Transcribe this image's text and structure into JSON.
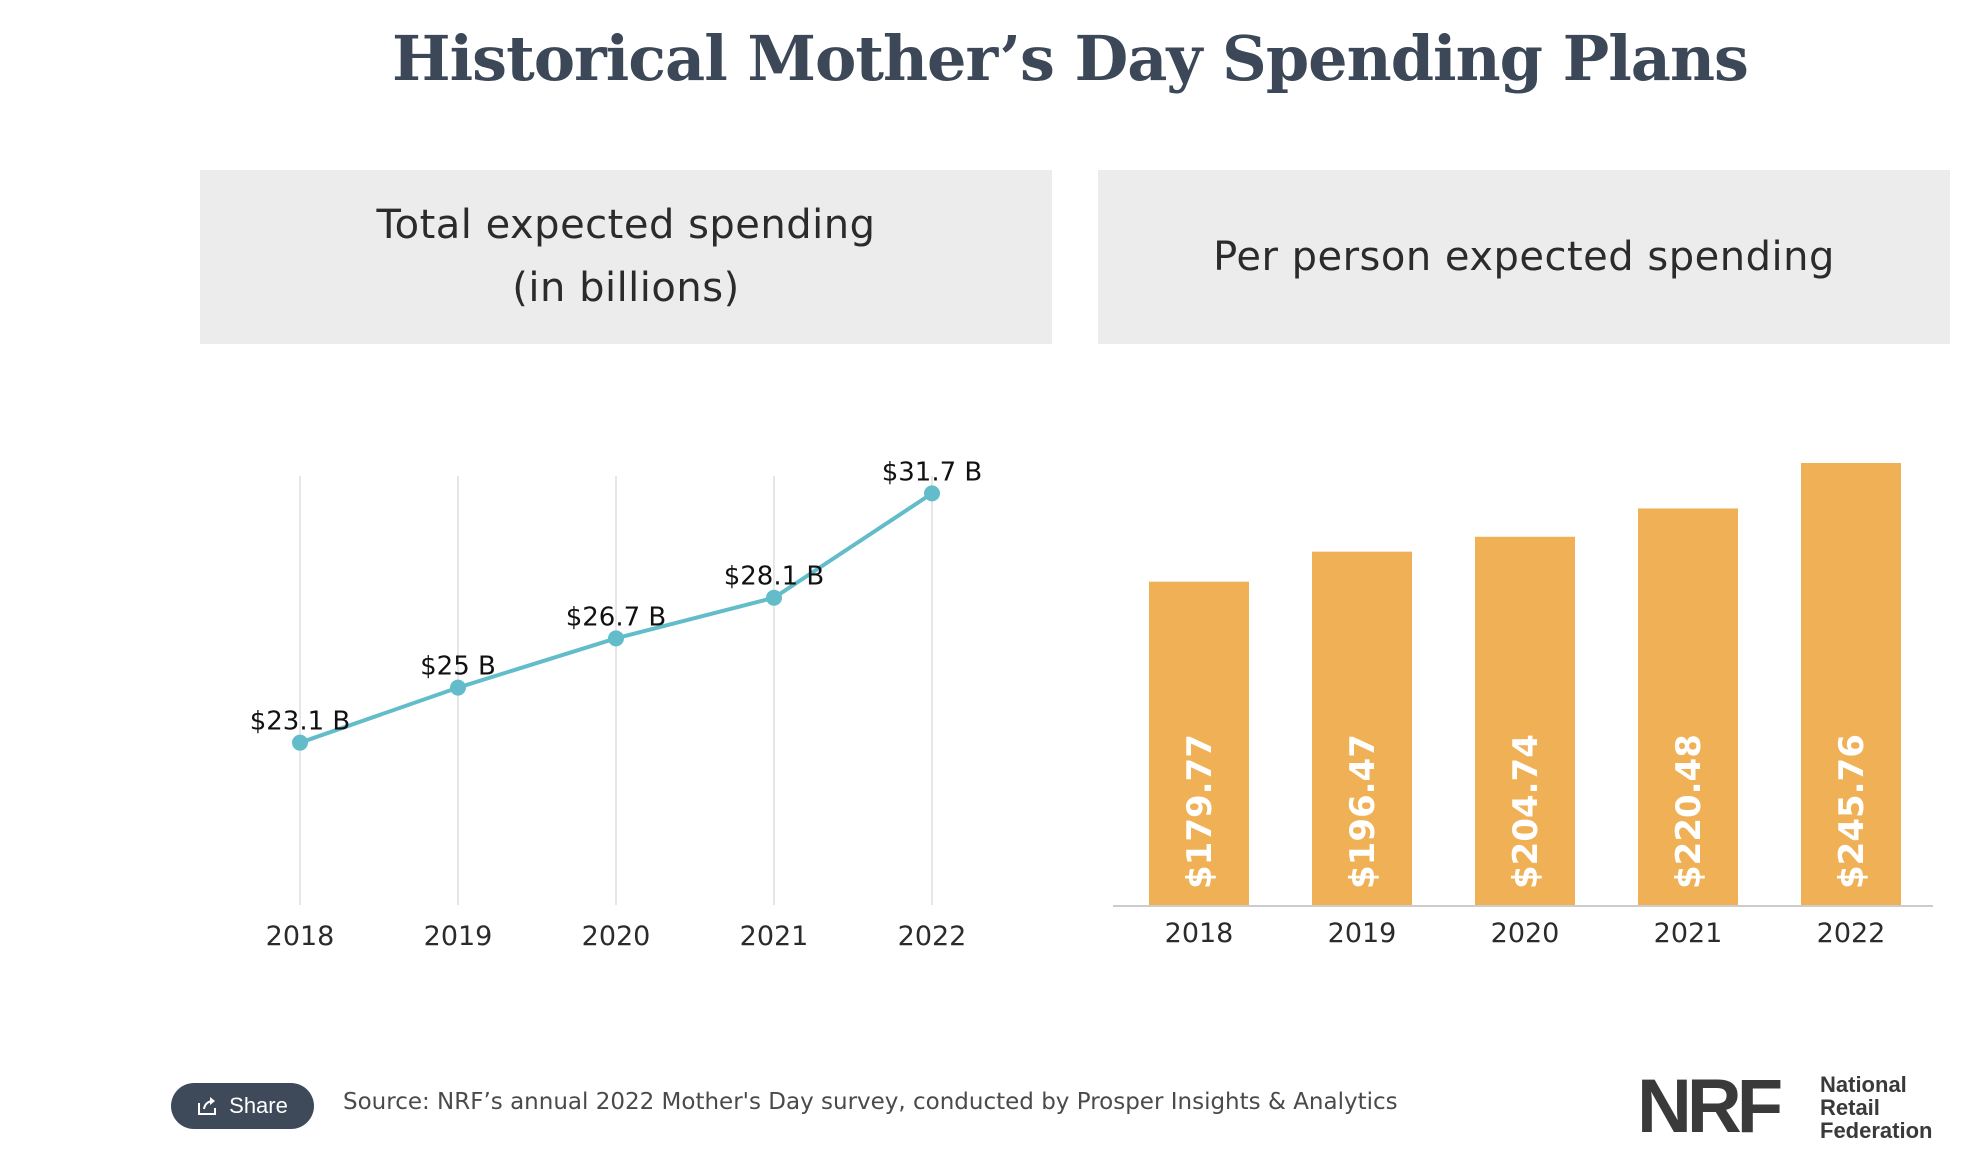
{
  "title": "Historical Mother’s Day Spending Plans",
  "panels": {
    "left_title": "Total expected spending\n(in billions)",
    "right_title": "Per person expected spending"
  },
  "chart_data": [
    {
      "type": "line",
      "title": "Total expected spending (in billions)",
      "categories": [
        "2018",
        "2019",
        "2020",
        "2021",
        "2022"
      ],
      "values": [
        23.1,
        25,
        26.7,
        28.1,
        31.7
      ],
      "data_labels": [
        "$23.1 B",
        "$25 B",
        "$26.7 B",
        "$28.1 B",
        "$31.7 B"
      ],
      "ylim": [
        17.5,
        32.3
      ],
      "grid": "vertical",
      "color": "#63bcc9"
    },
    {
      "type": "bar",
      "title": "Per person expected spending",
      "categories": [
        "2018",
        "2019",
        "2020",
        "2021",
        "2022"
      ],
      "values": [
        179.77,
        196.47,
        204.74,
        220.48,
        245.76
      ],
      "data_labels": [
        "$179.77",
        "$196.47",
        "$204.74",
        "$220.48",
        "$245.76"
      ],
      "ylim": [
        0,
        245.76
      ],
      "color": "#f0b056"
    }
  ],
  "footer": {
    "share_label": "Share",
    "source": "Source: NRF’s annual 2022 Mother's Day survey, conducted by Prosper Insights & Analytics",
    "logo_mark": "NRF",
    "logo_text": [
      "National",
      "Retail",
      "Federation"
    ]
  },
  "icons": {
    "share": "share-icon"
  }
}
